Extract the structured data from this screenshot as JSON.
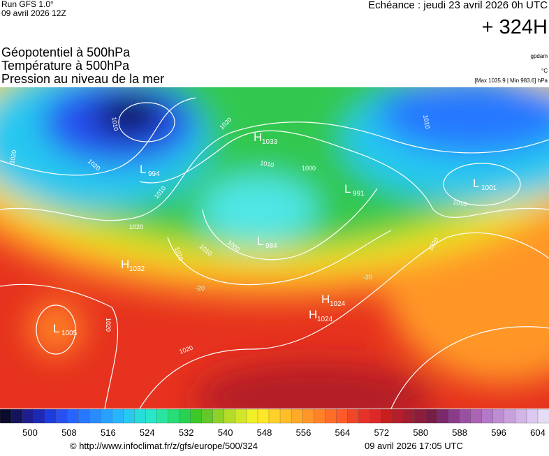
{
  "header": {
    "run": "Run GFS 1.0°",
    "run_date": "09 avril 2026 12Z",
    "echeance": "Echéance : jeudi 23 avril 2026 0h UTC",
    "lead": "+ 324H",
    "titles": [
      "Géopotentiel à 500hPa",
      "Température à 500hPa",
      "Pression au niveau de la mer"
    ],
    "units": [
      "gpdam",
      "°C",
      "[Max 1035.9 | Min 983.6] hPa"
    ]
  },
  "map": {
    "pressure_centers": [
      {
        "type": "L",
        "value": 994
      },
      {
        "type": "H",
        "value": 1033
      },
      {
        "type": "L",
        "value": 991
      },
      {
        "type": "L",
        "value": 1001
      },
      {
        "type": "L",
        "value": 984
      },
      {
        "type": "H",
        "value": 1032
      },
      {
        "type": "L",
        "value": 1005
      },
      {
        "type": "H",
        "value": 1024
      },
      {
        "type": "H",
        "value": 1024
      }
    ],
    "isobar_labels": [
      1010,
      1020,
      1020,
      1010,
      1020,
      1010,
      1000,
      1010,
      1000,
      1020,
      1020,
      1020,
      1010,
      1020,
      1020,
      1010
    ],
    "isotherm_labels": [
      -20,
      -20
    ]
  },
  "legend": {
    "ticks": [
      500,
      508,
      516,
      524,
      532,
      540,
      548,
      556,
      564,
      572,
      580,
      588,
      596,
      604
    ],
    "colors": [
      "#0a0a2a",
      "#14145a",
      "#1e1e8c",
      "#1e28b4",
      "#1e3cdc",
      "#2850f0",
      "#2864ff",
      "#2878ff",
      "#288cff",
      "#28a0ff",
      "#28b4ff",
      "#28c8f0",
      "#28dcdc",
      "#28e6c8",
      "#28e6a0",
      "#28dc78",
      "#28d250",
      "#3cc828",
      "#64c828",
      "#8cd228",
      "#b4dc28",
      "#d2e628",
      "#f0f028",
      "#ffe628",
      "#ffd228",
      "#ffbe28",
      "#ffaa28",
      "#ff9628",
      "#ff8228",
      "#ff6e28",
      "#ff5a28",
      "#f04628",
      "#e63228",
      "#dc2828",
      "#c81e1e",
      "#b41e28",
      "#a01e32",
      "#8c1e3c",
      "#781e46",
      "#7a2a6a",
      "#8a3c8a",
      "#9a50a0",
      "#aa64b4",
      "#b478c8",
      "#be8cd2",
      "#c8a0dc",
      "#d2b4e6",
      "#dcc8f0",
      "#e6dcf5"
    ]
  },
  "footer": {
    "source": "© http://www.infoclimat.fr/z/gfs/europe/500/324",
    "generated": "09 avril 2026 17:05 UTC"
  }
}
